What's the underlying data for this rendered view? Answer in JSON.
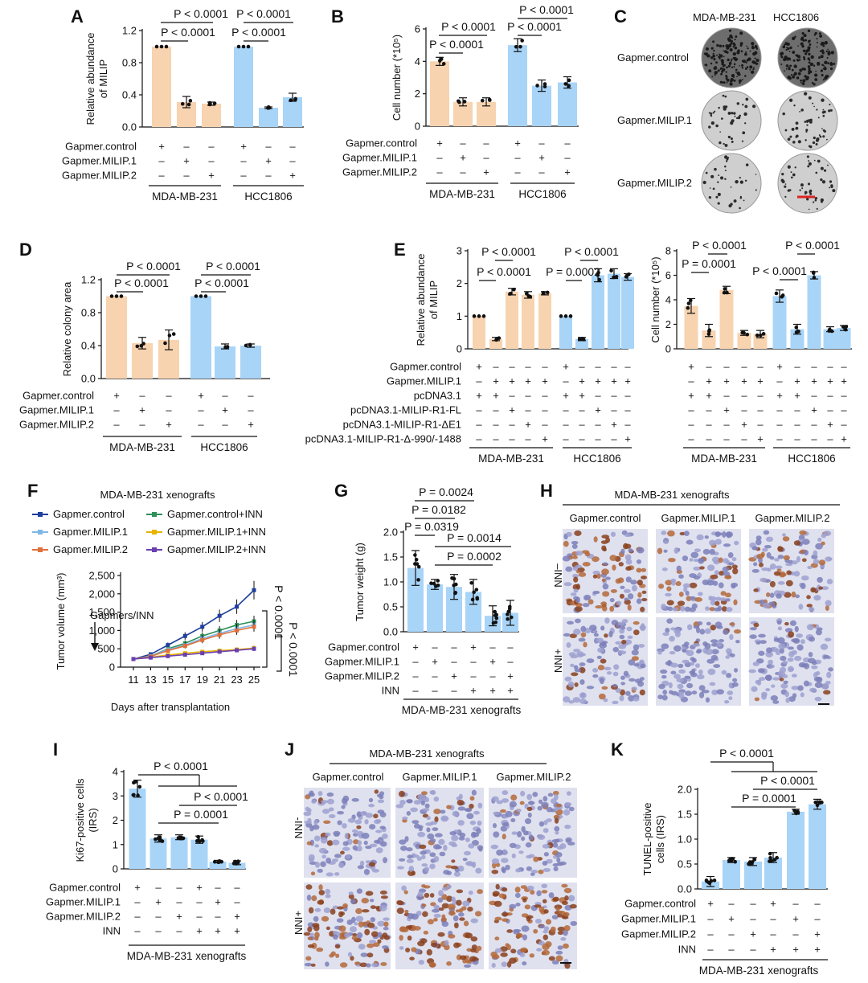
{
  "figure": {
    "colors": {
      "orange": "#f7d3b0",
      "blue": "#a8d4f8",
      "black": "#111111"
    },
    "A": {
      "label": "A",
      "ylabel": [
        "Relative abundance",
        "of MILIP"
      ],
      "yticks": [
        "0.0",
        "0.4",
        "0.8",
        "1.2"
      ],
      "pvalues": [
        "P < 0.0001",
        "P < 0.0001",
        "P < 0.0001",
        "P < 0.0001"
      ],
      "rows": [
        "Gapmer.control",
        "Gapmer.MILIP.1",
        "Gapmer.MILIP.2"
      ],
      "groups": [
        "MDA-MB-231",
        "HCC1806"
      ]
    },
    "B": {
      "label": "B",
      "ylabel": [
        "Cell number (*10⁵)"
      ],
      "yticks": [
        "0",
        "2",
        "4",
        "6"
      ],
      "pvalues": [
        "P < 0.0001",
        "P < 0.0001",
        "P < 0.0001",
        "P < 0.0001"
      ],
      "rows": [
        "Gapmer.control",
        "Gapmer.MILIP.1",
        "Gapmer.MILIP.2"
      ],
      "groups": [
        "MDA-MB-231",
        "HCC1806"
      ]
    },
    "C": {
      "label": "C",
      "cols": [
        "MDA-MB-231",
        "HCC1806"
      ],
      "rows": [
        "Gapmer.control",
        "Gapmer.MILIP.1",
        "Gapmer.MILIP.2"
      ]
    },
    "D": {
      "label": "D",
      "ylabel": [
        "Relative colony area"
      ],
      "yticks": [
        "0.0",
        "0.4",
        "0.8",
        "1.2"
      ],
      "pvalues": [
        "P < 0.0001",
        "P < 0.0001",
        "P < 0.0001",
        "P < 0.0001"
      ],
      "rows": [
        "Gapmer.control",
        "Gapmer.MILIP.1",
        "Gapmer.MILIP.2"
      ],
      "groups": [
        "MDA-MB-231",
        "HCC1806"
      ]
    },
    "E": {
      "label": "E",
      "ylabel1": [
        "Relative abundance",
        "of MILIP"
      ],
      "yticks1": [
        "0",
        "1",
        "2",
        "3"
      ],
      "pvalues1": [
        "P < 0.0001",
        "P < 0.0001",
        "P < 0.0001",
        "P = 0.0002"
      ],
      "ylabel2": [
        "Cell number (*10⁵)"
      ],
      "yticks2": [
        "0",
        "2",
        "4",
        "6",
        "8"
      ],
      "pvalues2": [
        "P < 0.0001",
        "P = 0.0001",
        "P < 0.0001",
        "P < 0.0001"
      ],
      "rows": [
        "Gapmer.control",
        "Gapmer.MILIP.1",
        "pcDNA3.1",
        "pcDNA3.1-MILIP-R1-FL",
        "pcDNA3.1-MILIP-R1-ΔE1",
        "pcDNA3.1-MILIP-R1-Δ-990/-1488"
      ],
      "groups": [
        "MDA-MB-231",
        "HCC1806"
      ]
    },
    "F": {
      "label": "F",
      "title": "MDA-MB-231 xenografts",
      "legend": [
        "Gapmer.control",
        "Gapmer.control+INN",
        "Gapmer.MILIP.1",
        "Gapmer.MILIP.1+INN",
        "Gapmer.MILIP.2",
        "Gapmer.MILIP.2+INN"
      ],
      "ylabel": "Tumor volume (mm³)",
      "yticks": [
        "0",
        "500",
        "1,000",
        "1,500",
        "2,000",
        "2,500"
      ],
      "xticks": [
        "11",
        "13",
        "15",
        "17",
        "19",
        "21",
        "23",
        "25"
      ],
      "xlabel": "Days after transplantation",
      "annotation": "Gapmers/INN",
      "pvalues": [
        "P < 0.0001",
        "P < 0.0001"
      ]
    },
    "G": {
      "label": "G",
      "ylabel": "Tumor weight (g)",
      "yticks": [
        "0.0",
        "0.5",
        "1.0",
        "1.5",
        "2.0"
      ],
      "pvalues": [
        "P = 0.0024",
        "P = 0.0182",
        "P = 0.0319",
        "P = 0.0014",
        "P = 0.0002"
      ],
      "rows": [
        "Gapmer.control",
        "Gapmer.MILIP.1",
        "Gapmer.MILIP.2",
        "INN"
      ],
      "group": "MDA-MB-231 xenografts"
    },
    "H": {
      "label": "H",
      "title": "MDA-MB-231 xenografts",
      "cols": [
        "Gapmer.control",
        "Gapmer.MILIP.1",
        "Gapmer.MILIP.2"
      ],
      "rows": [
        "–INN",
        "+INN"
      ]
    },
    "I": {
      "label": "I",
      "ylabel": [
        "Ki67-positive cells",
        "(IRS)"
      ],
      "yticks": [
        "0",
        "1",
        "2",
        "3",
        "4"
      ],
      "pvalues": [
        "P < 0.0001",
        "P < 0.0001",
        "P = 0.0001"
      ],
      "rows": [
        "Gapmer.control",
        "Gapmer.MILIP.1",
        "Gapmer.MILIP.2",
        "INN"
      ],
      "group": "MDA-MB-231 xenografts"
    },
    "J": {
      "label": "J",
      "title": "MDA-MB-231 xenografts",
      "cols": [
        "Gapmer.control",
        "Gapmer.MILIP.1",
        "Gapmer.MILIP.2"
      ],
      "rows": [
        "-INN",
        "+INN"
      ]
    },
    "K": {
      "label": "K",
      "ylabel": [
        "TUNEL-positive",
        "cells (IRS)"
      ],
      "yticks": [
        "0.0",
        "0.5",
        "1.0",
        "1.5",
        "2.0"
      ],
      "pvalues": [
        "P < 0.0001",
        "P < 0.0001",
        "P = 0.0001"
      ],
      "rows": [
        "Gapmer.control",
        "Gapmer.MILIP.1",
        "Gapmer.MILIP.2",
        "INN"
      ],
      "group": "MDA-MB-231 xenografts"
    }
  },
  "chart_data": [
    {
      "panel": "A",
      "type": "bar",
      "ylabel": "Relative abundance of MILIP",
      "ylim": [
        0,
        1.2
      ],
      "categories": [
        "MDA-MB-231 control",
        "MDA-MB-231 MILIP.1",
        "MDA-MB-231 MILIP.2",
        "HCC1806 control",
        "HCC1806 MILIP.1",
        "HCC1806 MILIP.2"
      ],
      "values": [
        1.0,
        0.31,
        0.29,
        1.0,
        0.24,
        0.37
      ],
      "errors": [
        0,
        0.07,
        0.02,
        0,
        0.01,
        0.05
      ]
    },
    {
      "panel": "B",
      "type": "bar",
      "ylabel": "Cell number (*10⁵)",
      "ylim": [
        0,
        6
      ],
      "categories": [
        "MDA-MB-231 control",
        "MDA-MB-231 MILIP.1",
        "MDA-MB-231 MILIP.2",
        "HCC1806 control",
        "HCC1806 MILIP.1",
        "HCC1806 MILIP.2"
      ],
      "values": [
        4.0,
        1.5,
        1.5,
        5.0,
        2.5,
        2.7
      ],
      "errors": [
        0.25,
        0.25,
        0.25,
        0.4,
        0.35,
        0.35
      ]
    },
    {
      "panel": "D",
      "type": "bar",
      "ylabel": "Relative colony area",
      "ylim": [
        0,
        1.2
      ],
      "categories": [
        "MDA-MB-231 control",
        "MDA-MB-231 MILIP.1",
        "MDA-MB-231 MILIP.2",
        "HCC1806 control",
        "HCC1806 MILIP.1",
        "HCC1806 MILIP.2"
      ],
      "values": [
        1.0,
        0.43,
        0.47,
        1.0,
        0.39,
        0.4
      ],
      "errors": [
        0,
        0.07,
        0.12,
        0,
        0.03,
        0.02
      ]
    },
    {
      "panel": "E-left",
      "type": "bar",
      "ylabel": "Relative abundance of MILIP",
      "ylim": [
        0,
        3
      ],
      "categories": [
        "MDA1",
        "MDA2",
        "MDA3",
        "MDA4",
        "MDA5",
        "HCC1",
        "HCC2",
        "HCC3",
        "HCC4",
        "HCC5"
      ],
      "values": [
        1.0,
        0.3,
        1.75,
        1.65,
        1.7,
        1.0,
        0.3,
        2.25,
        2.3,
        2.2
      ],
      "errors": [
        0,
        0.05,
        0.1,
        0.1,
        0.05,
        0,
        0.05,
        0.2,
        0.15,
        0.1
      ]
    },
    {
      "panel": "E-right",
      "type": "bar",
      "ylabel": "Cell number (*10⁵)",
      "ylim": [
        0,
        8
      ],
      "categories": [
        "MDA1",
        "MDA2",
        "MDA3",
        "MDA4",
        "MDA5",
        "HCC1",
        "HCC2",
        "HCC3",
        "HCC4",
        "HCC5"
      ],
      "values": [
        3.5,
        1.5,
        4.8,
        1.3,
        1.2,
        4.3,
        1.6,
        6.0,
        1.6,
        1.7
      ],
      "errors": [
        0.6,
        0.5,
        0.3,
        0.2,
        0.3,
        0.5,
        0.4,
        0.3,
        0.2,
        0.2
      ]
    },
    {
      "panel": "F",
      "type": "line",
      "xlabel": "Days after transplantation",
      "ylabel": "Tumor volume (mm³)",
      "x": [
        11,
        13,
        15,
        17,
        19,
        21,
        23,
        25
      ],
      "ylim": [
        0,
        2500
      ],
      "series": [
        {
          "name": "Gapmer.control",
          "color": "#1f3f9c",
          "values": [
            220,
            350,
            600,
            850,
            1100,
            1400,
            1650,
            2100
          ]
        },
        {
          "name": "Gapmer.control+INN",
          "color": "#2e8f5a",
          "values": [
            220,
            300,
            500,
            650,
            850,
            1000,
            1150,
            1250
          ]
        },
        {
          "name": "Gapmer.MILIP.1",
          "color": "#7fb7e6",
          "values": [
            220,
            300,
            480,
            600,
            780,
            920,
            1050,
            1150
          ]
        },
        {
          "name": "Gapmer.MILIP.1+INN",
          "color": "#e8b400",
          "values": [
            220,
            270,
            330,
            380,
            420,
            450,
            480,
            520
          ]
        },
        {
          "name": "Gapmer.MILIP.2",
          "color": "#e0703a",
          "values": [
            220,
            290,
            450,
            580,
            740,
            880,
            1000,
            1100
          ]
        },
        {
          "name": "Gapmer.MILIP.2+INN",
          "color": "#6a3fb0",
          "values": [
            220,
            260,
            300,
            340,
            380,
            420,
            460,
            500
          ]
        }
      ]
    },
    {
      "panel": "G",
      "type": "bar",
      "ylabel": "Tumor weight (g)",
      "ylim": [
        0,
        2
      ],
      "categories": [
        "1",
        "2",
        "3",
        "4",
        "5",
        "6"
      ],
      "values": [
        1.28,
        0.95,
        0.9,
        0.8,
        0.32,
        0.38
      ],
      "errors": [
        0.35,
        0.1,
        0.25,
        0.25,
        0.2,
        0.25
      ]
    },
    {
      "panel": "I",
      "type": "bar",
      "ylabel": "Ki67-positive cells (IRS)",
      "ylim": [
        0,
        4
      ],
      "categories": [
        "1",
        "2",
        "3",
        "4",
        "5",
        "6"
      ],
      "values": [
        3.3,
        1.25,
        1.3,
        1.2,
        0.3,
        0.25
      ],
      "errors": [
        0.35,
        0.15,
        0.1,
        0.15,
        0.05,
        0.08
      ]
    },
    {
      "panel": "K",
      "type": "bar",
      "ylabel": "TUNEL-positive cells (IRS)",
      "ylim": [
        0,
        2
      ],
      "categories": [
        "1",
        "2",
        "3",
        "4",
        "5",
        "6"
      ],
      "values": [
        0.15,
        0.58,
        0.55,
        0.63,
        1.55,
        1.7
      ],
      "errors": [
        0.1,
        0.05,
        0.08,
        0.1,
        0.05,
        0.1
      ]
    }
  ]
}
